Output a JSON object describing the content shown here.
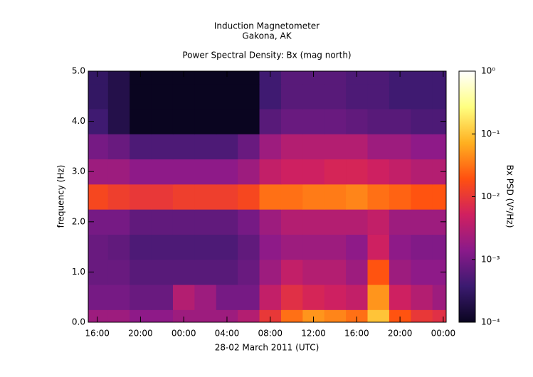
{
  "chart_data": {
    "type": "heatmap",
    "title": "Induction Magnetometer",
    "subtitle": "Gakona, AK",
    "plot_title": "Power Spectral Density: Bx (mag north)",
    "xlabel": "28-02 March 2011 (UTC)",
    "ylabel": "frequency (Hz)",
    "colorbar_label": "Bx PSD (V²/Hz)",
    "xlim": [
      15.17,
      48.27
    ],
    "xticks": [
      {
        "value": 16,
        "label": "16:00"
      },
      {
        "value": 20,
        "label": "20:00"
      },
      {
        "value": 24,
        "label": "00:00"
      },
      {
        "value": 28,
        "label": "04:00"
      },
      {
        "value": 32,
        "label": "08:00"
      },
      {
        "value": 36,
        "label": "12:00"
      },
      {
        "value": 40,
        "label": "16:00"
      },
      {
        "value": 44,
        "label": "20:00"
      },
      {
        "value": 48,
        "label": "00:00"
      }
    ],
    "ylim": [
      0,
      5
    ],
    "yticks": [
      {
        "value": 0,
        "label": "0.0"
      },
      {
        "value": 1,
        "label": "1.0"
      },
      {
        "value": 2,
        "label": "2.0"
      },
      {
        "value": 3,
        "label": "3.0"
      },
      {
        "value": 4,
        "label": "4.0"
      },
      {
        "value": 5,
        "label": "5.0"
      }
    ],
    "zlim": [
      0.0001,
      1
    ],
    "zlog": true,
    "zticks": [
      {
        "value": 0.0001,
        "label": "10⁻⁴"
      },
      {
        "value": 0.001,
        "label": "10⁻³"
      },
      {
        "value": 0.01,
        "label": "10⁻²"
      },
      {
        "value": 0.1,
        "label": "10⁻¹"
      },
      {
        "value": 1,
        "label": "10⁰"
      }
    ],
    "colormap": [
      "#0a0520",
      "#3b1a70",
      "#8a1a8a",
      "#d02060",
      "#ff5010",
      "#ffb020",
      "#ffff80",
      "#ffffff"
    ],
    "x": [
      16,
      18,
      20,
      22,
      24,
      26,
      28,
      30,
      32,
      34,
      36,
      38,
      40,
      42,
      44,
      46,
      48
    ],
    "y": [
      0,
      0.5,
      1,
      1.5,
      2,
      2.5,
      3,
      3.5,
      4,
      4.5,
      5
    ],
    "z": [
      [
        0.002,
        0.002,
        0.0015,
        0.0015,
        0.002,
        0.002,
        0.002,
        0.003,
        0.01,
        0.03,
        0.05,
        0.04,
        0.03,
        0.1,
        0.02,
        0.01,
        0.008
      ],
      [
        0.001,
        0.001,
        0.0008,
        0.0008,
        0.003,
        0.002,
        0.001,
        0.001,
        0.004,
        0.008,
        0.006,
        0.005,
        0.004,
        0.05,
        0.005,
        0.003,
        0.002
      ],
      [
        0.0008,
        0.0008,
        0.0006,
        0.0006,
        0.0006,
        0.0006,
        0.0006,
        0.0008,
        0.002,
        0.004,
        0.003,
        0.003,
        0.002,
        0.02,
        0.002,
        0.0015,
        0.0015
      ],
      [
        0.0008,
        0.0007,
        0.0005,
        0.0005,
        0.0005,
        0.0005,
        0.0005,
        0.0007,
        0.0015,
        0.002,
        0.002,
        0.002,
        0.0015,
        0.005,
        0.0015,
        0.0012,
        0.0012
      ],
      [
        0.001,
        0.001,
        0.0007,
        0.0007,
        0.0007,
        0.0007,
        0.0007,
        0.001,
        0.002,
        0.003,
        0.003,
        0.003,
        0.003,
        0.004,
        0.002,
        0.002,
        0.002
      ],
      [
        0.015,
        0.012,
        0.01,
        0.01,
        0.012,
        0.012,
        0.012,
        0.015,
        0.03,
        0.03,
        0.035,
        0.035,
        0.04,
        0.03,
        0.025,
        0.02,
        0.02
      ],
      [
        0.002,
        0.002,
        0.0015,
        0.0015,
        0.0015,
        0.0015,
        0.0015,
        0.002,
        0.004,
        0.005,
        0.005,
        0.006,
        0.006,
        0.005,
        0.004,
        0.003,
        0.003
      ],
      [
        0.001,
        0.0008,
        0.0005,
        0.0005,
        0.0005,
        0.0005,
        0.0005,
        0.0008,
        0.002,
        0.003,
        0.003,
        0.003,
        0.003,
        0.002,
        0.002,
        0.0015,
        0.0015
      ],
      [
        0.0004,
        0.0002,
        0.0001,
        0.0001,
        0.0001,
        0.0001,
        0.0001,
        0.0001,
        0.0006,
        0.0008,
        0.0008,
        0.0008,
        0.0007,
        0.0006,
        0.0006,
        0.0005,
        0.0005
      ],
      [
        0.0003,
        0.0002,
        0.0001,
        0.0001,
        0.0001,
        0.0001,
        0.0001,
        0.0001,
        0.0004,
        0.0006,
        0.0006,
        0.0006,
        0.0005,
        0.0005,
        0.0004,
        0.0004,
        0.0004
      ],
      [
        0.0003,
        0.0002,
        0.0001,
        0.0001,
        0.0001,
        0.0001,
        0.0001,
        0.0001,
        0.0004,
        0.0006,
        0.0006,
        0.0006,
        0.0005,
        0.0005,
        0.0004,
        0.0004,
        0.0004
      ]
    ]
  }
}
